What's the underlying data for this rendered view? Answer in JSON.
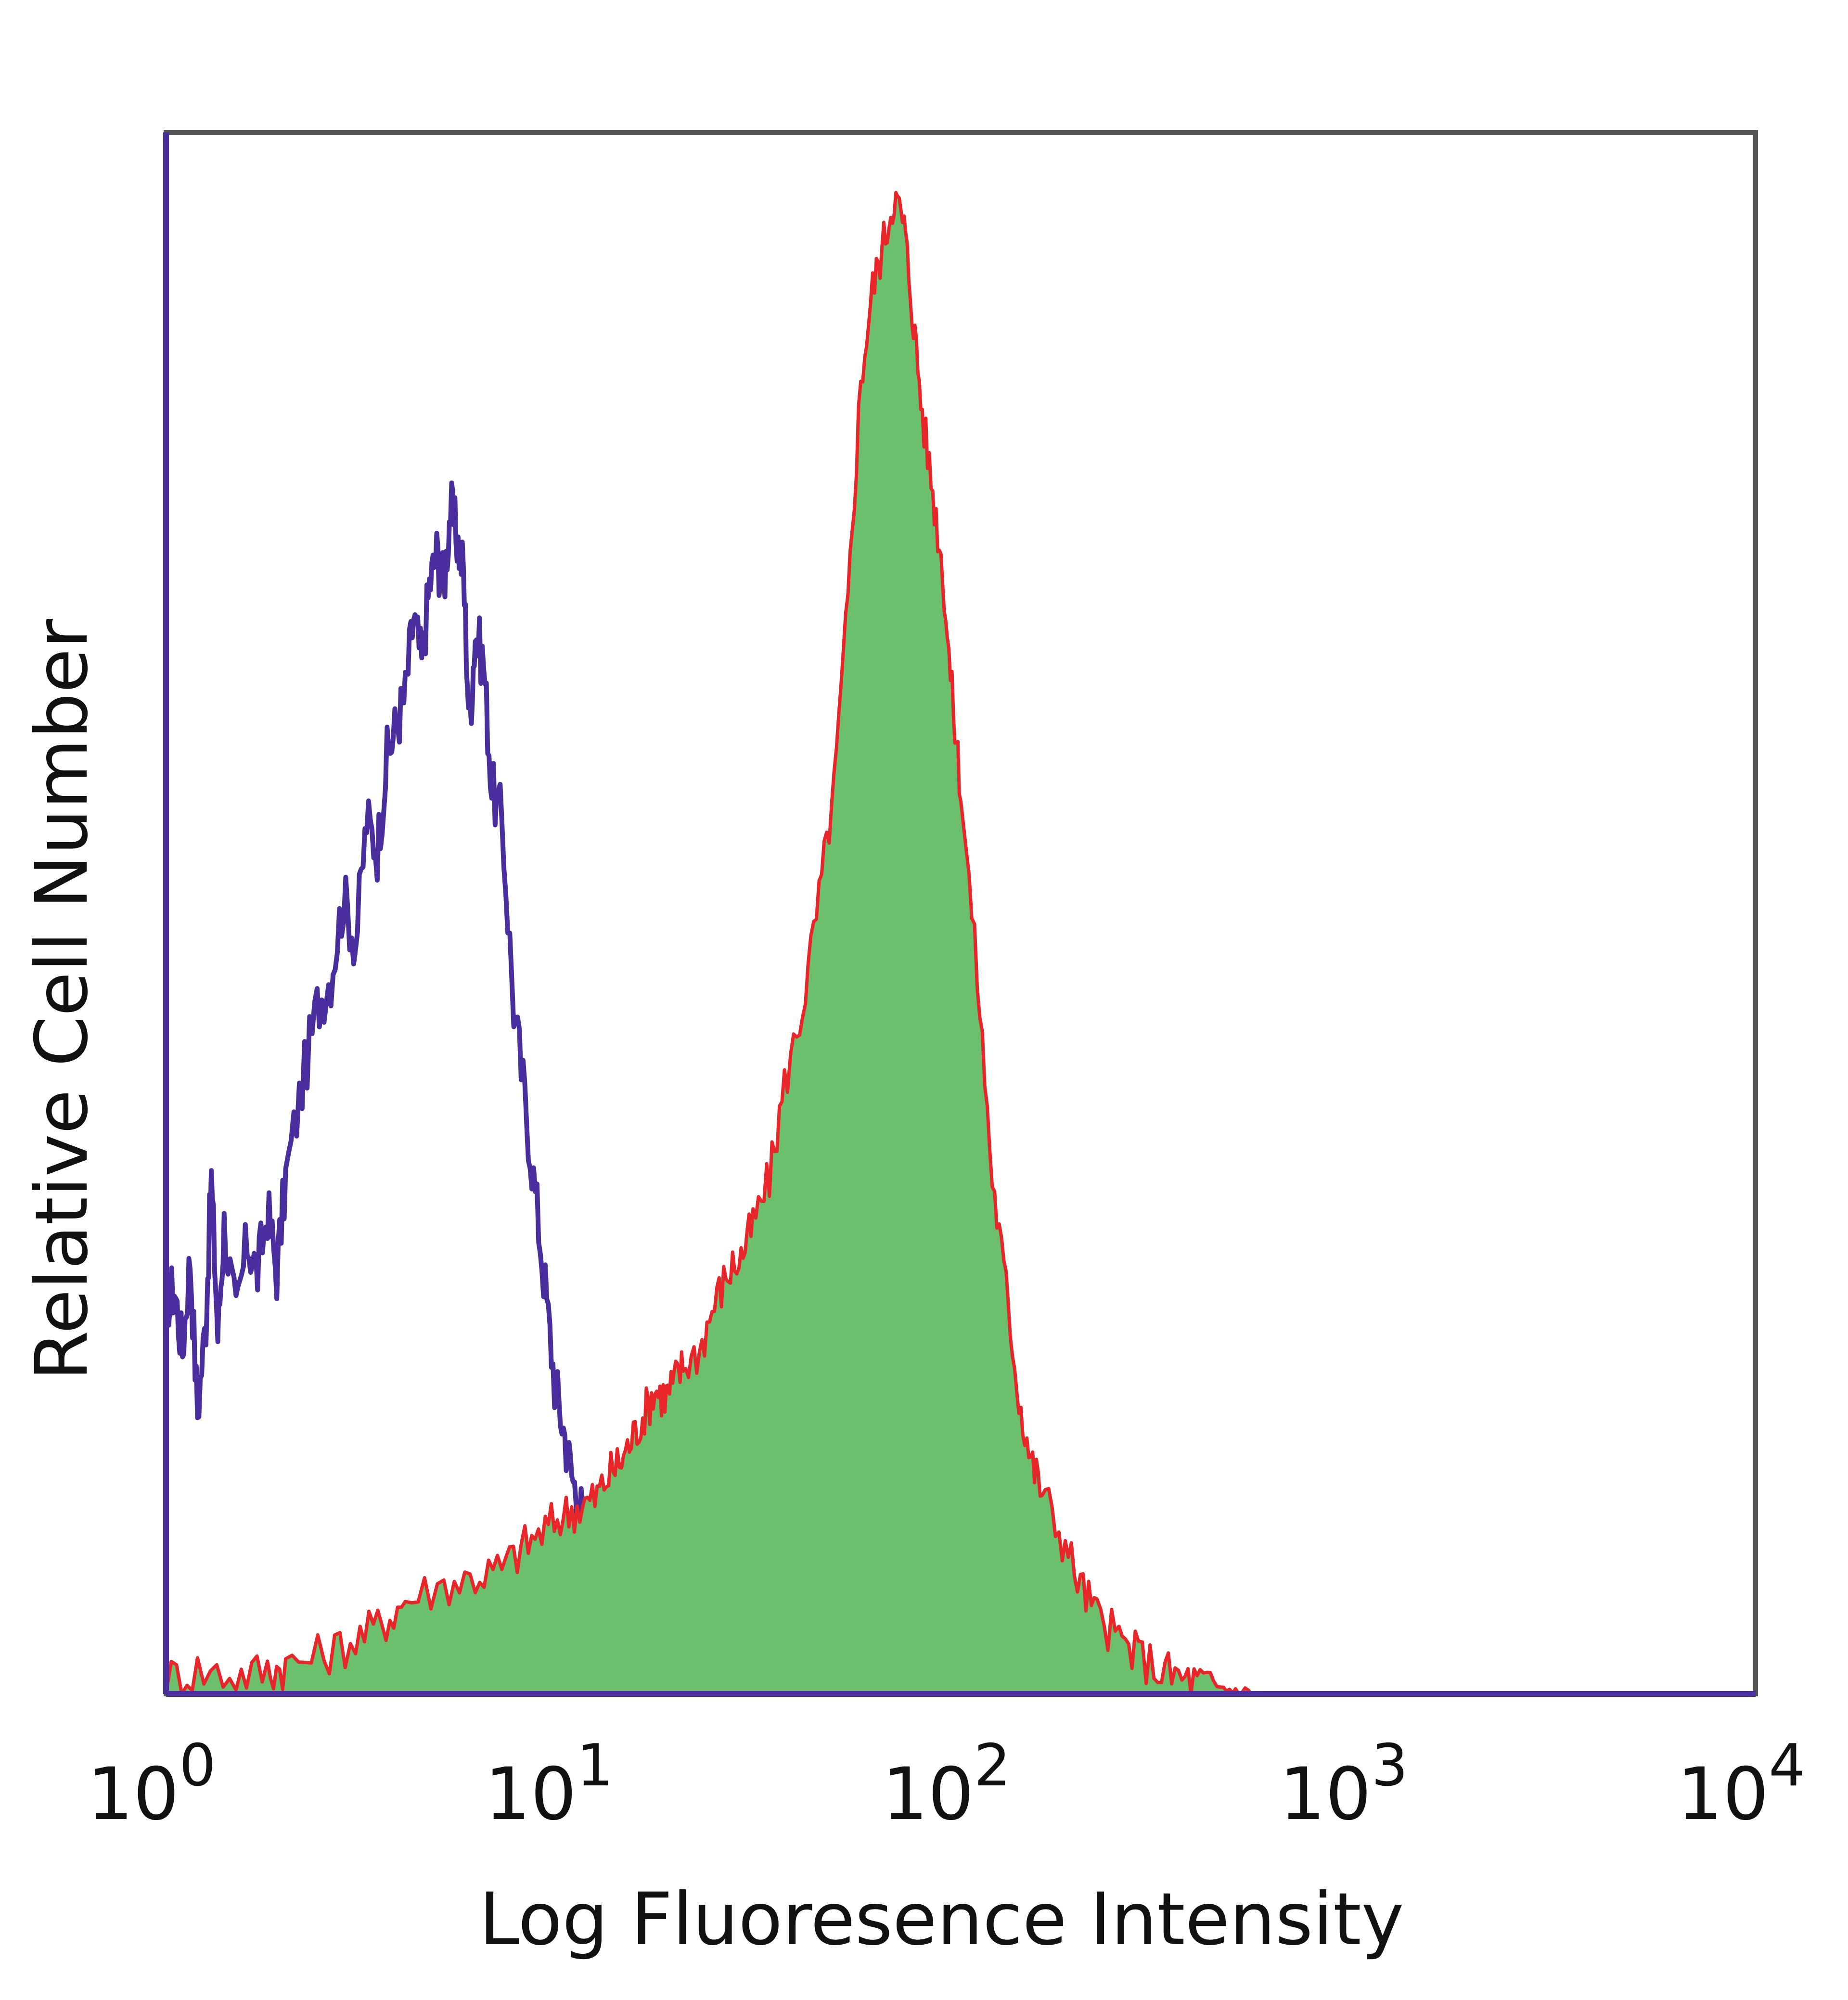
{
  "chart_data": {
    "type": "area",
    "title": "",
    "xlabel": "Log Fluoresence Intensity",
    "ylabel": "Relative Cell Number",
    "x_scale": "log",
    "xlim": [
      1,
      10000
    ],
    "ylim": [
      0,
      100
    ],
    "grid": false,
    "x_ticks": [
      {
        "value": 1,
        "base": "10",
        "exp": "0"
      },
      {
        "value": 10,
        "base": "10",
        "exp": "1"
      },
      {
        "value": 100,
        "base": "10",
        "exp": "2"
      },
      {
        "value": 1000,
        "base": "10",
        "exp": "3"
      },
      {
        "value": 10000,
        "base": "10",
        "exp": "4"
      }
    ],
    "series": [
      {
        "style": "outline",
        "color": "#4B2E9E",
        "x": [
          1.0,
          1.05,
          1.1,
          1.15,
          1.2,
          1.26,
          1.3,
          1.35,
          1.4,
          1.5,
          1.6,
          1.7,
          1.8,
          1.9,
          2.0,
          2.2,
          2.4,
          2.6,
          2.8,
          3.0,
          3.2,
          3.4,
          3.6,
          3.8,
          4.0,
          4.2,
          4.4,
          4.6,
          4.8,
          5.0,
          5.2,
          5.4,
          5.6,
          5.8,
          6.0,
          6.3,
          6.6,
          7.0,
          7.5,
          8.0,
          8.5,
          9.0,
          9.5,
          10.0,
          10.5,
          11.0,
          11.5,
          12.0,
          13.0,
          14.0,
          15.0,
          16.0,
          17.0,
          18.0,
          19.0,
          20.0
        ],
        "y": [
          25,
          26,
          22,
          28,
          18,
          24,
          33,
          23,
          30,
          24,
          29,
          27,
          31,
          27,
          33,
          39,
          44,
          46,
          51,
          48,
          56,
          54,
          60,
          62,
          64,
          69,
          66,
          71,
          73,
          71,
          76,
          74,
          72,
          62,
          68,
          66,
          58,
          56,
          44,
          38,
          32,
          26,
          20,
          17,
          14,
          12,
          10,
          8,
          5,
          3,
          2,
          1,
          0.5,
          0.2,
          0.1,
          0
        ],
        "name": ""
      },
      {
        "style": "filled",
        "color": "#6CBF6C",
        "line_color": "#E8262A",
        "x": [
          1.0,
          1.2,
          1.5,
          1.8,
          2.0,
          2.5,
          3.0,
          3.5,
          4.0,
          5.0,
          6.0,
          7.0,
          8.0,
          9.0,
          10.0,
          11.0,
          12.0,
          13.0,
          14.0,
          15.0,
          16.0,
          17.0,
          18.0,
          19.0,
          20.0,
          22.0,
          24.0,
          26.0,
          28.0,
          30.0,
          33.0,
          36.0,
          40.0,
          44.0,
          48.0,
          52.0,
          56.0,
          60.0,
          64.0,
          68.0,
          72.0,
          76.0,
          80.0,
          85.0,
          90.0,
          95.0,
          100.0,
          110.0,
          120.0,
          130.0,
          140.0,
          150.0,
          160.0,
          180.0,
          200.0,
          220.0,
          250.0,
          280.0,
          320.0,
          360.0,
          400.0,
          450.0,
          500.0,
          560.0
        ],
        "y": [
          1,
          1.5,
          1.2,
          1.5,
          1.8,
          2.5,
          3.5,
          4.5,
          6,
          7,
          7.5,
          8,
          9.5,
          10.5,
          11.5,
          12,
          12.5,
          14,
          15,
          16.5,
          18,
          19.5,
          19,
          20,
          21,
          22,
          25,
          27,
          28,
          30,
          33,
          39,
          44,
          51,
          58,
          70,
          84,
          90,
          93,
          96,
          94,
          88,
          82,
          77,
          72,
          64,
          58,
          46,
          33,
          26,
          19,
          15,
          13,
          10,
          7,
          5,
          3.5,
          2.5,
          1.5,
          1,
          0.7,
          0.4,
          0.2,
          0
        ],
        "name": ""
      }
    ]
  }
}
